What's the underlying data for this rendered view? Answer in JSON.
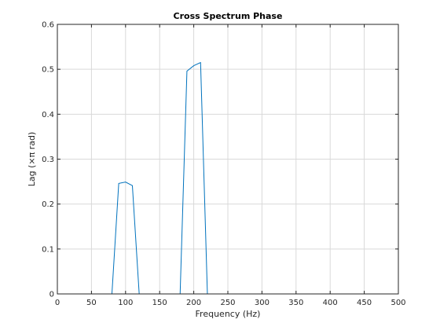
{
  "chart_data": {
    "type": "line",
    "title": "Cross Spectrum Phase",
    "xlabel": "Frequency (Hz)",
    "ylabel": "Lag (×π rad)",
    "xlim": [
      0,
      500
    ],
    "ylim": [
      0,
      0.6
    ],
    "xticks": [
      0,
      50,
      100,
      150,
      200,
      250,
      300,
      350,
      400,
      450,
      500
    ],
    "yticks": [
      0,
      0.1,
      0.2,
      0.3,
      0.4,
      0.5,
      0.6
    ],
    "xtick_labels": [
      "0",
      "50",
      "100",
      "150",
      "200",
      "250",
      "300",
      "350",
      "400",
      "450",
      "500"
    ],
    "ytick_labels": [
      "0",
      "0.1",
      "0.2",
      "0.3",
      "0.4",
      "0.5",
      "0.6"
    ],
    "grid": true,
    "series": [
      {
        "color": "#0072bd",
        "x": [
          0,
          80,
          90,
          100,
          110,
          120,
          180,
          190,
          200,
          210,
          220,
          500
        ],
        "y": [
          0,
          0,
          0.246,
          0.249,
          0.241,
          0,
          0,
          0.496,
          0.508,
          0.515,
          0,
          0
        ]
      }
    ]
  }
}
